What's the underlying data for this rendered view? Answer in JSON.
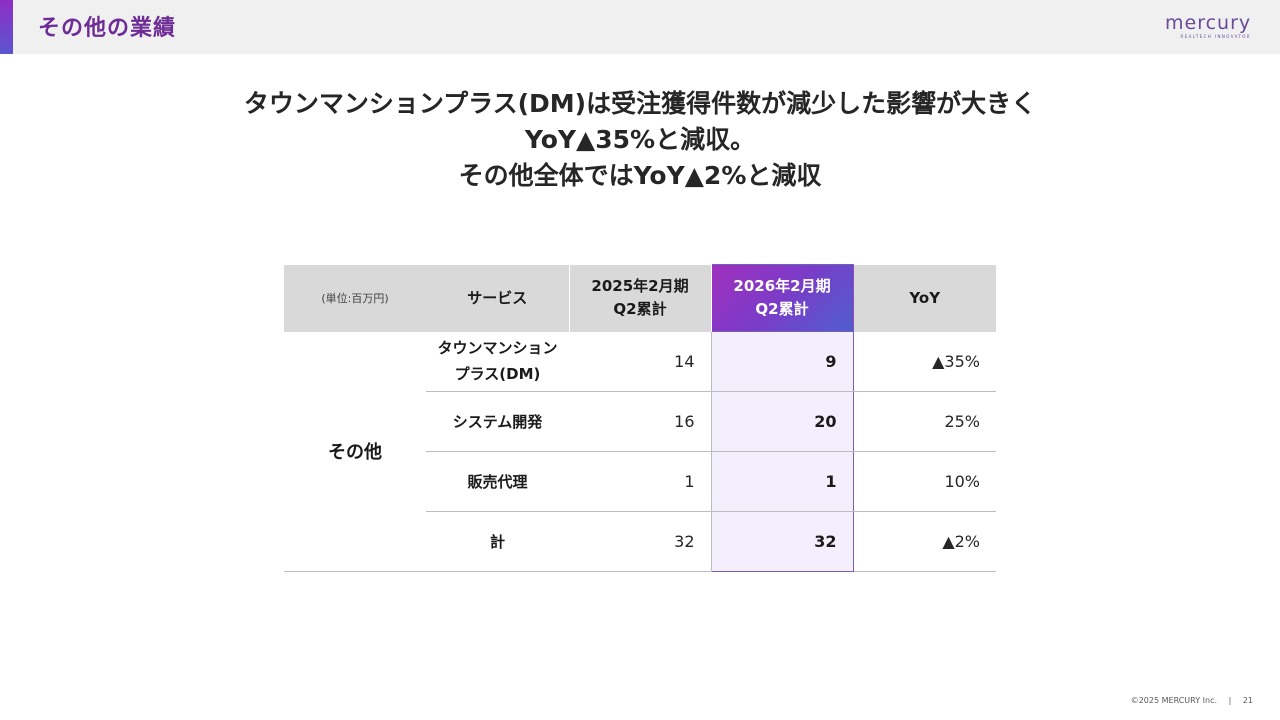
{
  "header": {
    "title": "その他の業績",
    "logo_text": "mercury",
    "logo_tagline": "REALTECH INNOVATOR"
  },
  "headline": {
    "line1": "タウンマンションプラス(DM)は受注獲得件数が減少した影響が大きく",
    "line2": "YoY▲35%と減収。",
    "line3": "その他全体ではYoY▲2%と減収"
  },
  "table": {
    "unit_label": "(単位:百万円)",
    "col_service": "サービス",
    "col_prev_line1": "2025年2月期",
    "col_prev_line2": "Q2累計",
    "col_cur_line1": "2026年2月期",
    "col_cur_line2": "Q2累計",
    "col_yoy": "YoY",
    "group_label": "その他",
    "rows": [
      {
        "service_line1": "タウンマンション",
        "service_line2": "プラス(DM)",
        "prev": "14",
        "cur": "9",
        "yoy": "▲35%"
      },
      {
        "service_line1": "システム開発",
        "service_line2": "",
        "prev": "16",
        "cur": "20",
        "yoy": "25%"
      },
      {
        "service_line1": "販売代理",
        "service_line2": "",
        "prev": "1",
        "cur": "1",
        "yoy": "10%"
      },
      {
        "service_line1": "計",
        "service_line2": "",
        "prev": "32",
        "cur": "32",
        "yoy": "▲2%"
      }
    ]
  },
  "footer": {
    "copyright": "©2025 MERCURY Inc.",
    "separator": "|",
    "page_number": "21"
  },
  "colors": {
    "title": "#6e2d96",
    "accent_start": "#a02fbe",
    "accent_end": "#4f5fce",
    "highlight_bg": "#f4effc"
  }
}
